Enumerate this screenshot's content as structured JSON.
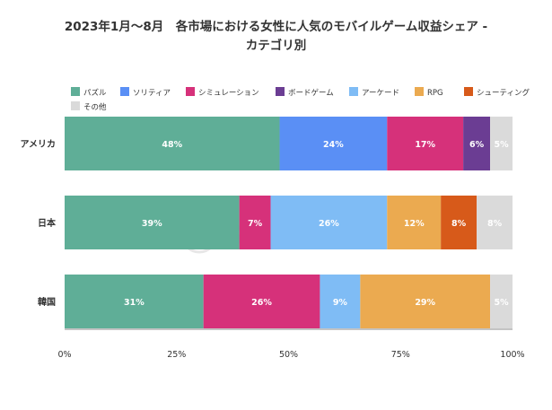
{
  "chart_data": {
    "type": "bar",
    "orientation": "horizontal",
    "stacked": "percent",
    "title_lines": [
      "2023年1月～8月　各市場における女性に人気のモバイルゲーム収益シェア -",
      "カテゴリ別"
    ],
    "categories": [
      "アメリカ",
      "日本",
      "韓国"
    ],
    "series": [
      {
        "name": "パズル",
        "color": "#5fae97",
        "values": [
          48,
          39,
          31
        ]
      },
      {
        "name": "ソリティア",
        "color": "#5a8ff5",
        "values": [
          24,
          0,
          0
        ]
      },
      {
        "name": "シミュレーション",
        "color": "#d6317a",
        "values": [
          17,
          7,
          26
        ]
      },
      {
        "name": "ボードゲーム",
        "color": "#6b3d93",
        "values": [
          6,
          0,
          0
        ]
      },
      {
        "name": "アーケード",
        "color": "#7fbcf5",
        "values": [
          0,
          26,
          9
        ]
      },
      {
        "name": "RPG",
        "color": "#ebaa50",
        "values": [
          0,
          12,
          29
        ]
      },
      {
        "name": "シューティング",
        "color": "#d75a1a",
        "values": [
          0,
          8,
          0
        ]
      },
      {
        "name": "その他",
        "color": "#dadada",
        "values": [
          5,
          8,
          5
        ]
      }
    ],
    "xlim": [
      0,
      100
    ],
    "xticks": [
      "0%",
      "25%",
      "50%",
      "75%",
      "100%"
    ],
    "legend_position": "top-left",
    "grid": false
  },
  "watermark": "SensorTower"
}
